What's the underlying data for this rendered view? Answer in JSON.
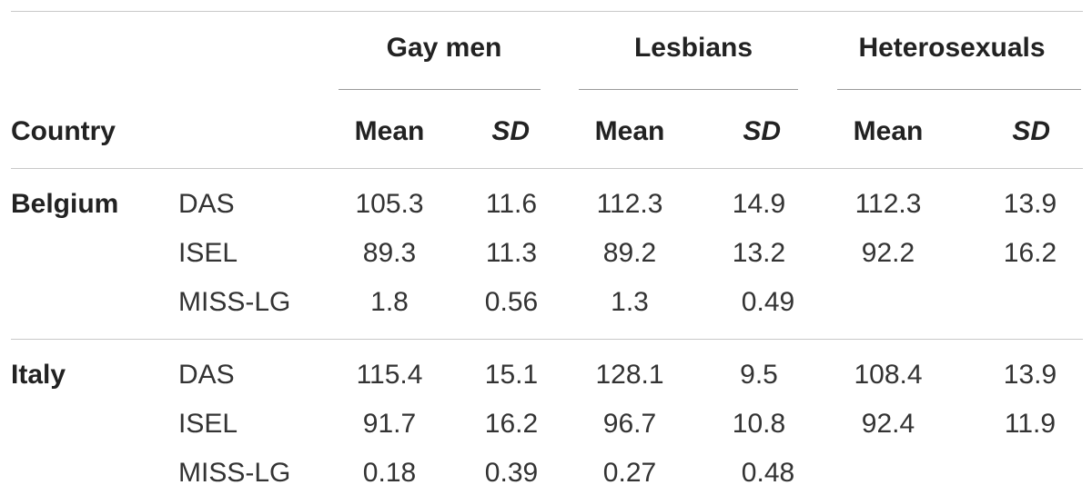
{
  "table": {
    "groups": [
      "Gay men",
      "Lesbians",
      "Heterosexuals"
    ],
    "country_header": "Country",
    "mean_label": "Mean",
    "sd_label": "SD",
    "rows": [
      {
        "country": "Belgium",
        "measure": "DAS",
        "gay_mean": "105.3",
        "gay_sd": "11.6",
        "les_mean": "112.3",
        "les_sd": "14.9",
        "het_mean": "112.3",
        "het_sd": "13.9"
      },
      {
        "country": "",
        "measure": "ISEL",
        "gay_mean": "89.3",
        "gay_sd": "11.3",
        "les_mean": "89.2",
        "les_sd": "13.2",
        "het_mean": "92.2",
        "het_sd": "16.2"
      },
      {
        "country": "",
        "measure": "MISS-LG",
        "gay_mean": "1.8",
        "gay_sd": "0.56",
        "les_mean": "1.3",
        "les_sd": "0.49",
        "het_mean": "",
        "het_sd": ""
      },
      {
        "country": "Italy",
        "measure": "DAS",
        "gay_mean": "115.4",
        "gay_sd": "15.1",
        "les_mean": "128.1",
        "les_sd": "9.5",
        "het_mean": "108.4",
        "het_sd": "13.9"
      },
      {
        "country": "",
        "measure": "ISEL",
        "gay_mean": "91.7",
        "gay_sd": "16.2",
        "les_mean": "96.7",
        "les_sd": "10.8",
        "het_mean": "92.4",
        "het_sd": "11.9"
      },
      {
        "country": "",
        "measure": "MISS-LG",
        "gay_mean": "0.18",
        "gay_sd": "0.39",
        "les_mean": "0.27",
        "les_sd": "0.48",
        "het_mean": "",
        "het_sd": ""
      }
    ]
  }
}
